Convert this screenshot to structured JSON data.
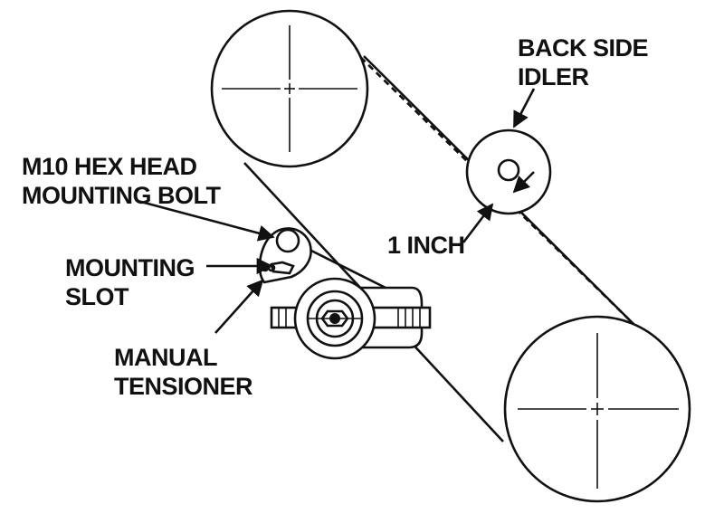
{
  "labels": {
    "back_side_idler": [
      "BACK SIDE",
      "IDLER"
    ],
    "hex_bolt": [
      "M10 HEX HEAD",
      "MOUNTING BOLT"
    ],
    "mounting_slot": [
      "MOUNTING",
      "SLOT"
    ],
    "measurement": "1 INCH",
    "manual_tensioner": [
      "MANUAL",
      "TENSIONER"
    ]
  }
}
